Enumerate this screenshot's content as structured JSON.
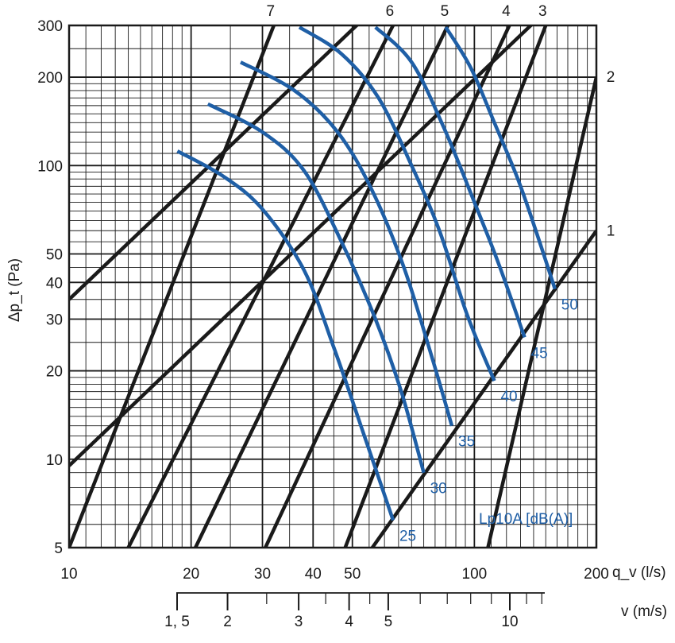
{
  "chart_data": {
    "type": "line",
    "x_scale": "log",
    "y_scale": "log",
    "xlim": [
      10,
      200
    ],
    "ylim": [
      5,
      300
    ],
    "grid": true,
    "xlabel": "q_v (l/s)",
    "ylabel": "Δp_t (Pa)",
    "x_ticks": [
      {
        "v": 10,
        "label": "10"
      },
      {
        "v": 20,
        "label": "20"
      },
      {
        "v": 30,
        "label": "30"
      },
      {
        "v": 40,
        "label": "40"
      },
      {
        "v": 50,
        "label": "50"
      },
      {
        "v": 100,
        "label": "100"
      },
      {
        "v": 200,
        "label": "200"
      }
    ],
    "y_ticks": [
      {
        "v": 5,
        "label": "5"
      },
      {
        "v": 10,
        "label": "10"
      },
      {
        "v": 20,
        "label": "20"
      },
      {
        "v": 30,
        "label": "30"
      },
      {
        "v": 40,
        "label": "40"
      },
      {
        "v": 50,
        "label": "50"
      },
      {
        "v": 100,
        "label": "100"
      },
      {
        "v": 200,
        "label": "200"
      },
      {
        "v": 300,
        "label": "300"
      }
    ],
    "x_grid_values": [
      10,
      11,
      12,
      13,
      14,
      15,
      16,
      17,
      18,
      19,
      20,
      25,
      30,
      35,
      40,
      45,
      50,
      55,
      60,
      65,
      70,
      75,
      80,
      85,
      90,
      95,
      100,
      110,
      120,
      130,
      140,
      150,
      160,
      170,
      180,
      190,
      200
    ],
    "y_grid_values": [
      5,
      6,
      7,
      8,
      9,
      10,
      11,
      12,
      13,
      14,
      15,
      16,
      17,
      18,
      19,
      20,
      25,
      30,
      35,
      40,
      45,
      50,
      55,
      60,
      65,
      70,
      75,
      80,
      85,
      90,
      95,
      100,
      110,
      120,
      130,
      140,
      150,
      160,
      170,
      180,
      190,
      200,
      250,
      300
    ],
    "size_lines": [
      {
        "label": "1",
        "points": [
          [
            56,
            5
          ],
          [
            200,
            60
          ]
        ]
      },
      {
        "label": "2",
        "points": [
          [
            108,
            5
          ],
          [
            200,
            200
          ]
        ]
      },
      {
        "label": "3",
        "points": [
          [
            48,
            5
          ],
          [
            150,
            300
          ]
        ]
      },
      {
        "label": "4",
        "points": [
          [
            30.5,
            5
          ],
          [
            122,
            300
          ]
        ]
      },
      {
        "label": "5",
        "points": [
          [
            20.5,
            5
          ],
          [
            86,
            300
          ]
        ]
      },
      {
        "label": "6",
        "points": [
          [
            14,
            5
          ],
          [
            63,
            300
          ]
        ]
      },
      {
        "label": "7",
        "points": [
          [
            10,
            5
          ],
          [
            32,
            300
          ]
        ]
      },
      {
        "label": "",
        "points": [
          [
            10,
            9.5
          ],
          [
            200,
            490
          ]
        ]
      },
      {
        "label": "",
        "points": [
          [
            10,
            35
          ],
          [
            200,
            1800
          ]
        ]
      }
    ],
    "sound_curves": {
      "legend": "Lp10A [dB(A)]",
      "series": [
        {
          "name": "25",
          "points": [
            [
              18.5,
              112
            ],
            [
              24,
              92
            ],
            [
              30,
              71
            ],
            [
              38,
              44
            ],
            [
              45,
              24
            ],
            [
              53,
              12.5
            ],
            [
              63,
              6.2
            ]
          ]
        },
        {
          "name": "30",
          "points": [
            [
              22,
              162
            ],
            [
              30,
              130
            ],
            [
              38,
              96
            ],
            [
              47,
              55
            ],
            [
              57,
              30
            ],
            [
              66,
              17
            ],
            [
              75,
              9
            ]
          ]
        },
        {
          "name": "35",
          "points": [
            [
              26.5,
              225
            ],
            [
              36,
              180
            ],
            [
              46,
              130
            ],
            [
              56,
              82
            ],
            [
              67,
              45
            ],
            [
              78,
              23
            ],
            [
              88,
              13
            ]
          ]
        },
        {
          "name": "40",
          "points": [
            [
              37,
              296
            ],
            [
              47,
              240
            ],
            [
              58,
              170
            ],
            [
              70,
              100
            ],
            [
              82,
              60
            ],
            [
              96,
              31
            ],
            [
              112,
              18.5
            ]
          ]
        },
        {
          "name": "45",
          "points": [
            [
              57,
              296
            ],
            [
              70,
              225
            ],
            [
              84,
              135
            ],
            [
              100,
              75
            ],
            [
              115,
              46
            ],
            [
              133,
              26
            ]
          ]
        },
        {
          "name": "50",
          "points": [
            [
              85,
              296
            ],
            [
              98,
              215
            ],
            [
              112,
              140
            ],
            [
              128,
              90
            ],
            [
              143,
              58
            ],
            [
              158,
              38
            ]
          ]
        }
      ]
    },
    "velocity_axis": {
      "label": "v (m/s)",
      "ticks": [
        {
          "v": 1.5,
          "label": "1, 5"
        },
        {
          "v": 2,
          "label": "2"
        },
        {
          "v": 3,
          "label": "3"
        },
        {
          "v": 4,
          "label": "4"
        },
        {
          "v": 5,
          "label": "5"
        },
        {
          "v": 10,
          "label": "10"
        }
      ],
      "minor_ticks": [
        2.5,
        3.5,
        4.5,
        6,
        7,
        8,
        9,
        11,
        12
      ]
    }
  }
}
